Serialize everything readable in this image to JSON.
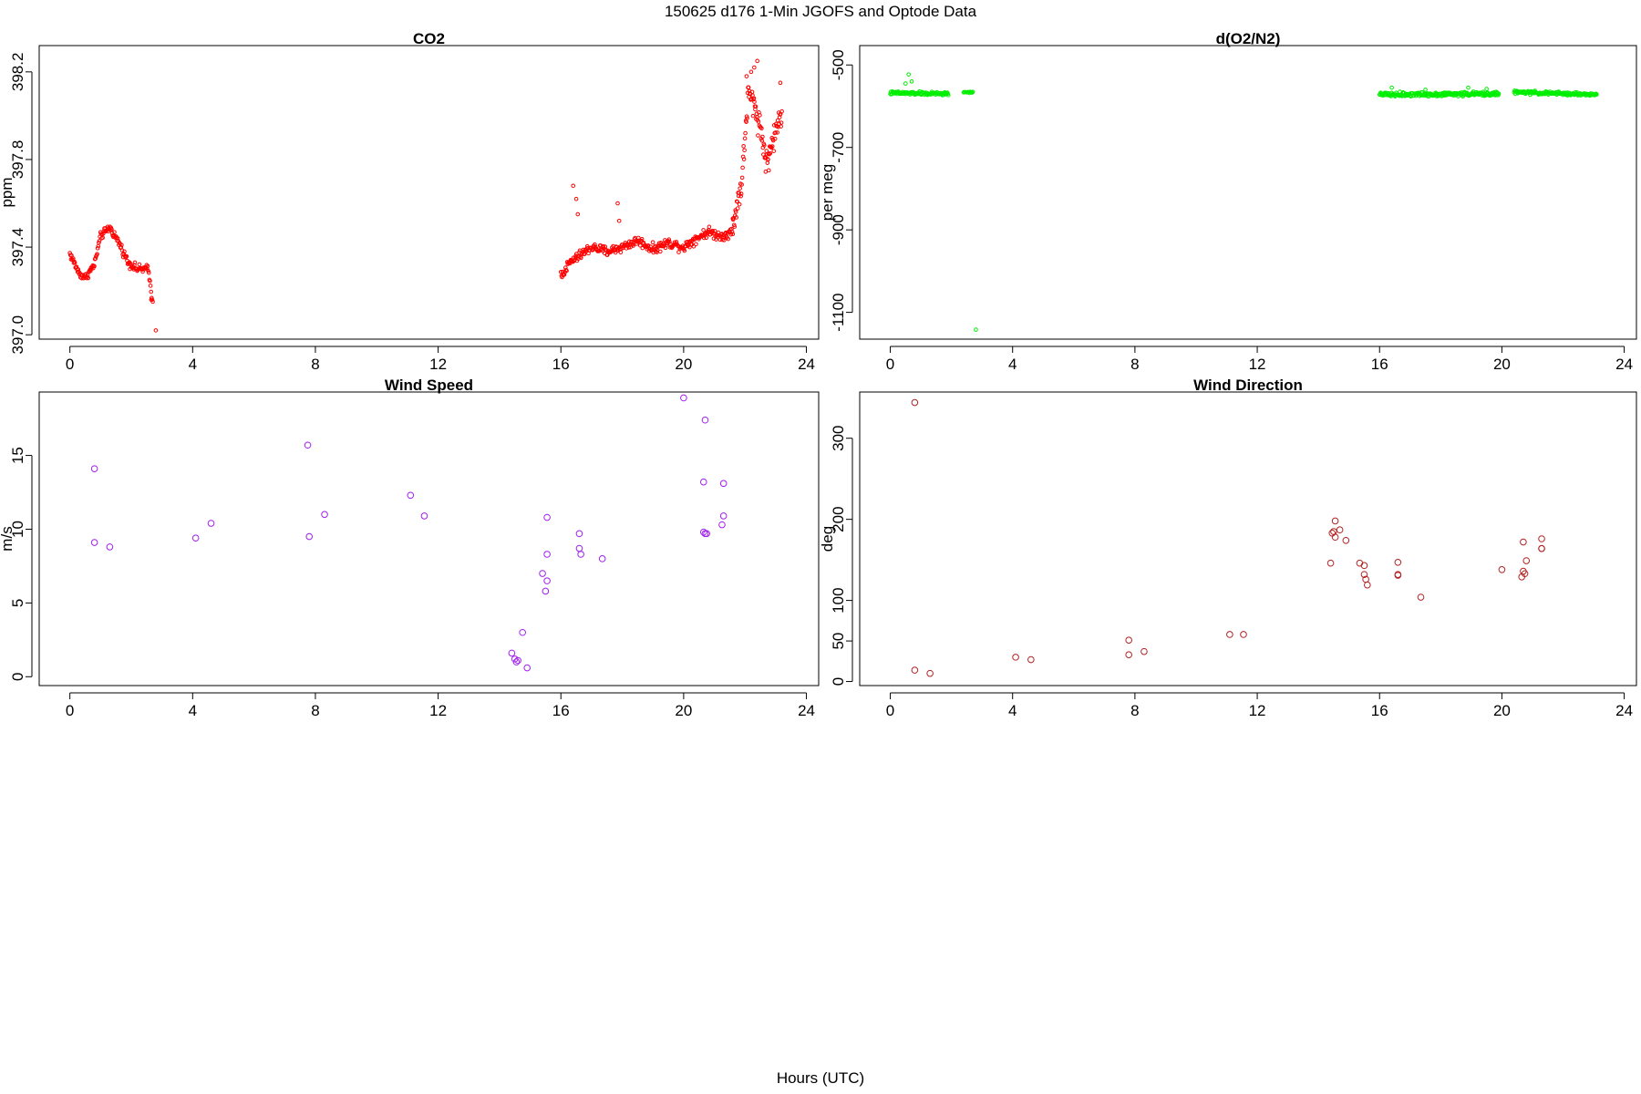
{
  "figure": {
    "suptitle": "150625   d176   1-Min  JGOFS and Optode Data",
    "xlabel": "Hours (UTC)"
  },
  "chart_data": [
    {
      "type": "scatter",
      "title": "CO2",
      "ylabel": "ppm",
      "xlim": [
        -1,
        24.4
      ],
      "ylim": [
        396.98,
        398.32
      ],
      "xticks": [
        0,
        4,
        8,
        12,
        16,
        20,
        24
      ],
      "yticks": [
        397.0,
        397.4,
        397.8,
        398.2
      ],
      "ytick_labels": [
        "397.0",
        "397.4",
        "397.8",
        "398.2"
      ],
      "ytick_rotate": true,
      "color": "#ff0000",
      "marker_r": 1.8,
      "segments": [
        {
          "x0": 0.0,
          "x1": 2.7,
          "n": 150,
          "anchors": [
            [
              0.0,
              397.37
            ],
            [
              0.3,
              397.28
            ],
            [
              0.5,
              397.26
            ],
            [
              0.8,
              397.32
            ],
            [
              1.0,
              397.45
            ],
            [
              1.3,
              397.49
            ],
            [
              1.6,
              397.42
            ],
            [
              1.9,
              397.33
            ],
            [
              2.2,
              397.3
            ],
            [
              2.55,
              397.3
            ],
            [
              2.7,
              397.15
            ]
          ],
          "noise": 0.018
        },
        {
          "x0": 16.0,
          "x1": 21.6,
          "n": 300,
          "anchors": [
            [
              16.0,
              397.27
            ],
            [
              16.3,
              397.33
            ],
            [
              16.6,
              397.36
            ],
            [
              17.0,
              397.4
            ],
            [
              17.5,
              397.38
            ],
            [
              18.0,
              397.4
            ],
            [
              18.5,
              397.43
            ],
            [
              19.0,
              397.39
            ],
            [
              19.5,
              397.42
            ],
            [
              20.0,
              397.4
            ],
            [
              20.4,
              397.44
            ],
            [
              20.8,
              397.47
            ],
            [
              21.2,
              397.45
            ],
            [
              21.6,
              397.47
            ]
          ],
          "noise": 0.022
        },
        {
          "x0": 21.6,
          "x1": 23.2,
          "n": 110,
          "anchors": [
            [
              21.6,
              397.5
            ],
            [
              21.9,
              397.7
            ],
            [
              22.1,
              398.1
            ],
            [
              22.3,
              398.05
            ],
            [
              22.5,
              397.95
            ],
            [
              22.7,
              397.78
            ],
            [
              22.9,
              397.88
            ],
            [
              23.2,
              398.02
            ]
          ],
          "noise": 0.06
        }
      ],
      "points": [
        [
          2.65,
          397.16
        ],
        [
          2.8,
          397.02
        ],
        [
          16.4,
          397.68
        ],
        [
          16.5,
          397.62
        ],
        [
          16.55,
          397.55
        ],
        [
          17.85,
          397.6
        ],
        [
          17.9,
          397.52
        ],
        [
          22.3,
          398.22
        ],
        [
          22.4,
          398.25
        ],
        [
          22.2,
          398.2
        ],
        [
          22.05,
          398.18
        ],
        [
          22.75,
          397.8
        ],
        [
          23.15,
          398.15
        ]
      ]
    },
    {
      "type": "scatter",
      "title": "d(O2/N2)",
      "ylabel": "per meg",
      "xlim": [
        -1,
        24.4
      ],
      "ylim": [
        -1165,
        -453
      ],
      "xticks": [
        0,
        4,
        8,
        12,
        16,
        20,
        24
      ],
      "yticks": [
        -500,
        -700,
        -900,
        -1100
      ],
      "ytick_labels": [
        "-500",
        "-700",
        "-900",
        "-1100"
      ],
      "ytick_rotate": true,
      "color": "#00ee00",
      "marker_r": 1.8,
      "segments": [
        {
          "x0": 0.0,
          "x1": 1.9,
          "n": 110,
          "anchors": [
            [
              0.0,
              -568
            ],
            [
              1.9,
              -570
            ]
          ],
          "noise": 4
        },
        {
          "x0": 2.4,
          "x1": 2.7,
          "n": 12,
          "anchors": [
            [
              2.4,
              -566
            ],
            [
              2.7,
              -566
            ]
          ],
          "noise": 3
        },
        {
          "x0": 16.0,
          "x1": 19.9,
          "n": 230,
          "anchors": [
            [
              16.0,
              -572
            ],
            [
              19.9,
              -570
            ]
          ],
          "noise": 5
        },
        {
          "x0": 20.4,
          "x1": 23.1,
          "n": 160,
          "anchors": [
            [
              20.4,
              -566
            ],
            [
              23.1,
              -572
            ]
          ],
          "noise": 4
        }
      ],
      "points": [
        [
          0.6,
          -523
        ],
        [
          0.5,
          -545
        ],
        [
          0.7,
          -540
        ],
        [
          16.4,
          -555
        ],
        [
          17.5,
          -560
        ],
        [
          18.9,
          -555
        ],
        [
          19.5,
          -558
        ],
        [
          2.8,
          -1142
        ]
      ]
    },
    {
      "type": "scatter",
      "title": "Wind Speed",
      "ylabel": "m/s",
      "xlim": [
        -1,
        24.4
      ],
      "ylim": [
        -0.6,
        19.3
      ],
      "xticks": [
        0,
        4,
        8,
        12,
        16,
        20,
        24
      ],
      "yticks": [
        0,
        5,
        10,
        15
      ],
      "ytick_labels": [
        "0",
        "5",
        "10",
        "15"
      ],
      "ytick_rotate": true,
      "color": "#a020f0",
      "marker_r": 3.3,
      "segments": [],
      "points": [
        [
          0.8,
          14.1
        ],
        [
          0.8,
          9.1
        ],
        [
          1.3,
          8.8
        ],
        [
          4.1,
          9.4
        ],
        [
          4.6,
          10.4
        ],
        [
          7.75,
          15.7
        ],
        [
          7.8,
          9.5
        ],
        [
          8.3,
          11.0
        ],
        [
          11.1,
          12.3
        ],
        [
          11.55,
          10.9
        ],
        [
          14.4,
          1.6
        ],
        [
          14.5,
          1.2
        ],
        [
          14.55,
          1.0
        ],
        [
          14.6,
          1.1
        ],
        [
          14.75,
          3.0
        ],
        [
          14.9,
          0.6
        ],
        [
          15.4,
          7.0
        ],
        [
          15.5,
          5.8
        ],
        [
          15.55,
          6.5
        ],
        [
          15.55,
          8.3
        ],
        [
          15.55,
          10.8
        ],
        [
          16.6,
          8.7
        ],
        [
          16.65,
          8.3
        ],
        [
          16.6,
          9.7
        ],
        [
          17.35,
          8.0
        ],
        [
          20.0,
          18.9
        ],
        [
          20.65,
          13.2
        ],
        [
          20.7,
          17.4
        ],
        [
          20.65,
          9.8
        ],
        [
          20.7,
          9.7
        ],
        [
          20.75,
          9.7
        ],
        [
          21.25,
          10.3
        ],
        [
          21.3,
          10.9
        ],
        [
          21.3,
          13.1
        ]
      ]
    },
    {
      "type": "scatter",
      "title": "Wind Direction",
      "ylabel": "deg",
      "xlim": [
        -1,
        24.4
      ],
      "ylim": [
        -5,
        357
      ],
      "xticks": [
        0,
        4,
        8,
        12,
        16,
        20,
        24
      ],
      "yticks": [
        0,
        50,
        100,
        200,
        300
      ],
      "ytick_labels": [
        "0",
        "50",
        "100",
        "200",
        "300"
      ],
      "ytick_rotate": true,
      "color": "#b22222",
      "marker_r": 3.3,
      "segments": [],
      "points": [
        [
          0.8,
          344
        ],
        [
          0.8,
          14
        ],
        [
          1.3,
          10
        ],
        [
          4.1,
          30
        ],
        [
          4.6,
          27
        ],
        [
          7.8,
          51
        ],
        [
          7.8,
          33
        ],
        [
          8.3,
          37
        ],
        [
          11.1,
          58
        ],
        [
          11.55,
          58
        ],
        [
          14.4,
          146
        ],
        [
          14.45,
          183
        ],
        [
          14.5,
          185
        ],
        [
          14.55,
          198
        ],
        [
          14.55,
          178
        ],
        [
          14.7,
          187
        ],
        [
          14.9,
          174
        ],
        [
          15.35,
          146
        ],
        [
          15.5,
          143
        ],
        [
          15.5,
          132
        ],
        [
          15.55,
          126
        ],
        [
          15.6,
          119
        ],
        [
          16.6,
          132
        ],
        [
          16.6,
          131
        ],
        [
          16.6,
          147
        ],
        [
          17.35,
          104
        ],
        [
          20.0,
          138
        ],
        [
          20.65,
          129
        ],
        [
          20.7,
          136
        ],
        [
          20.75,
          133
        ],
        [
          20.8,
          149
        ],
        [
          20.7,
          172
        ],
        [
          21.3,
          164
        ],
        [
          21.3,
          164
        ],
        [
          21.3,
          176
        ]
      ]
    }
  ]
}
